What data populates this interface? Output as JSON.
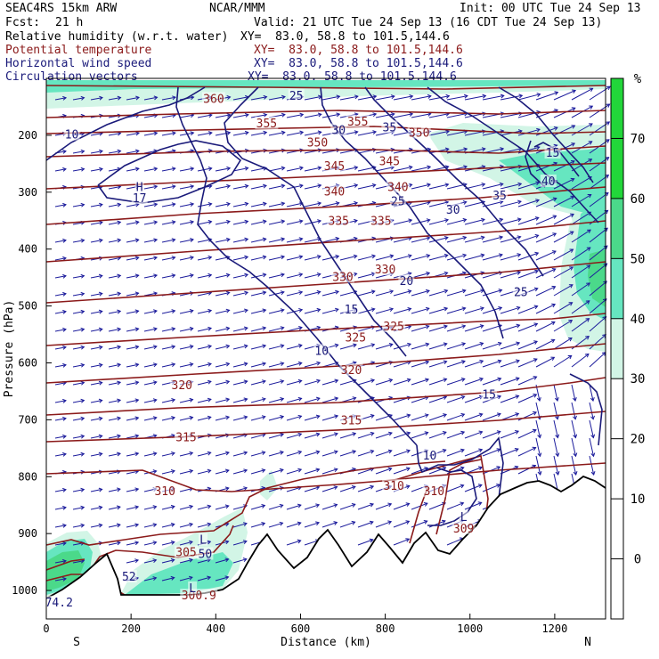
{
  "header": {
    "model": "SEAC4RS 15km ARW",
    "center": "NCAR/MMM",
    "init": "Init: 00 UTC Tue 24 Sep 13",
    "fcst_label": "Fcst:",
    "fcst_value": "21 h",
    "valid": "Valid: 21 UTC Tue 24 Sep 13 (16 CDT Tue 24 Sep 13)",
    "fields": [
      {
        "name": "Relative humidity (w.r.t. water)",
        "xy": "XY=  83.0, 58.8 to 101.5,144.6"
      },
      {
        "name": "Potential temperature",
        "xy": "XY=  83.0, 58.8 to 101.5,144.6"
      },
      {
        "name": "Horizontal wind speed",
        "xy": "XY=  83.0, 58.8 to 101.5,144.6"
      },
      {
        "name": "Circulation vectors",
        "xy": "XY=  83.0, 58.8 to 101.5,144.6"
      }
    ]
  },
  "colors": {
    "theta": "#8b1a1a",
    "wind_speed": "#1a1a7a",
    "vectors": "#1c1c9c",
    "rh_shades": [
      "#ffffff",
      "#d2f5e6",
      "#66e6c0",
      "#4bd98a",
      "#22d63a"
    ]
  },
  "chart_data": {
    "type": "contour",
    "xlabel": "Distance (km)",
    "ylabel": "Pressure (hPa)",
    "xlim": [
      0,
      1320
    ],
    "ylim": [
      1050,
      100
    ],
    "x_ticks": [
      0,
      200,
      400,
      600,
      800,
      1000,
      1200
    ],
    "y_ticks": [
      200,
      300,
      400,
      500,
      600,
      700,
      800,
      900,
      1000
    ],
    "x_end_labels": {
      "left": "S",
      "right": "N"
    },
    "colorbar": {
      "unit": "%",
      "ticks": [
        0,
        10,
        20,
        30,
        40,
        50,
        60,
        70
      ],
      "filled_levels": [
        {
          "from": 30,
          "to": 40,
          "color": "#d2f5e6"
        },
        {
          "from": 40,
          "to": 50,
          "color": "#66e6c0"
        },
        {
          "from": 50,
          "to": 60,
          "color": "#4bd98a"
        },
        {
          "from": 60,
          "to": 80,
          "color": "#22d63a"
        }
      ]
    },
    "potential_temperature_labels": [
      {
        "text": "360",
        "x": 395,
        "p": 135
      },
      {
        "text": "355",
        "x": 520,
        "p": 178
      },
      {
        "text": "355",
        "x": 735,
        "p": 175
      },
      {
        "text": "350",
        "x": 640,
        "p": 212
      },
      {
        "text": "350",
        "x": 880,
        "p": 195
      },
      {
        "text": "345",
        "x": 680,
        "p": 253
      },
      {
        "text": "345",
        "x": 810,
        "p": 245
      },
      {
        "text": "340",
        "x": 680,
        "p": 298
      },
      {
        "text": "340",
        "x": 830,
        "p": 290
      },
      {
        "text": "335",
        "x": 690,
        "p": 350
      },
      {
        "text": "335",
        "x": 790,
        "p": 350
      },
      {
        "text": "330",
        "x": 700,
        "p": 448
      },
      {
        "text": "330",
        "x": 800,
        "p": 435
      },
      {
        "text": "325",
        "x": 730,
        "p": 555
      },
      {
        "text": "325",
        "x": 820,
        "p": 535
      },
      {
        "text": "320",
        "x": 320,
        "p": 638
      },
      {
        "text": "320",
        "x": 720,
        "p": 612
      },
      {
        "text": "315",
        "x": 330,
        "p": 730
      },
      {
        "text": "315",
        "x": 720,
        "p": 700
      },
      {
        "text": "310",
        "x": 280,
        "p": 825
      },
      {
        "text": "310",
        "x": 820,
        "p": 815
      },
      {
        "text": "310",
        "x": 915,
        "p": 825
      },
      {
        "text": "309",
        "x": 985,
        "p": 890
      },
      {
        "text": "305",
        "x": 330,
        "p": 932
      },
      {
        "text": "300.9",
        "x": 360,
        "p": 1008
      }
    ],
    "wind_speed_labels": [
      {
        "text": "25",
        "x": 590,
        "p": 130
      },
      {
        "text": "10",
        "x": 60,
        "p": 198
      },
      {
        "text": "30",
        "x": 690,
        "p": 190
      },
      {
        "text": "35",
        "x": 810,
        "p": 185
      },
      {
        "text": "15",
        "x": 1195,
        "p": 230
      },
      {
        "text": "40",
        "x": 1185,
        "p": 280
      },
      {
        "text": "35",
        "x": 1070,
        "p": 305
      },
      {
        "text": "30",
        "x": 960,
        "p": 330
      },
      {
        "text": "25",
        "x": 830,
        "p": 315
      },
      {
        "text": "20",
        "x": 850,
        "p": 455
      },
      {
        "text": "25",
        "x": 1120,
        "p": 475
      },
      {
        "text": "15",
        "x": 720,
        "p": 505
      },
      {
        "text": "10",
        "x": 650,
        "p": 578
      },
      {
        "text": "15",
        "x": 1045,
        "p": 655
      },
      {
        "text": "10",
        "x": 905,
        "p": 762
      }
    ],
    "extrema": [
      {
        "text": "H",
        "x": 220,
        "p": 290
      },
      {
        "text": "17",
        "x": 220,
        "p": 310
      },
      {
        "text": "L",
        "x": 370,
        "p": 910
      },
      {
        "text": "L",
        "x": 345,
        "p": 995
      },
      {
        "text": "L",
        "x": 985,
        "p": 870
      },
      {
        "text": "50",
        "x": 375,
        "p": 935
      },
      {
        "text": "52",
        "x": 195,
        "p": 975
      },
      {
        "text": "74.2",
        "x": 30,
        "p": 1020
      }
    ]
  }
}
